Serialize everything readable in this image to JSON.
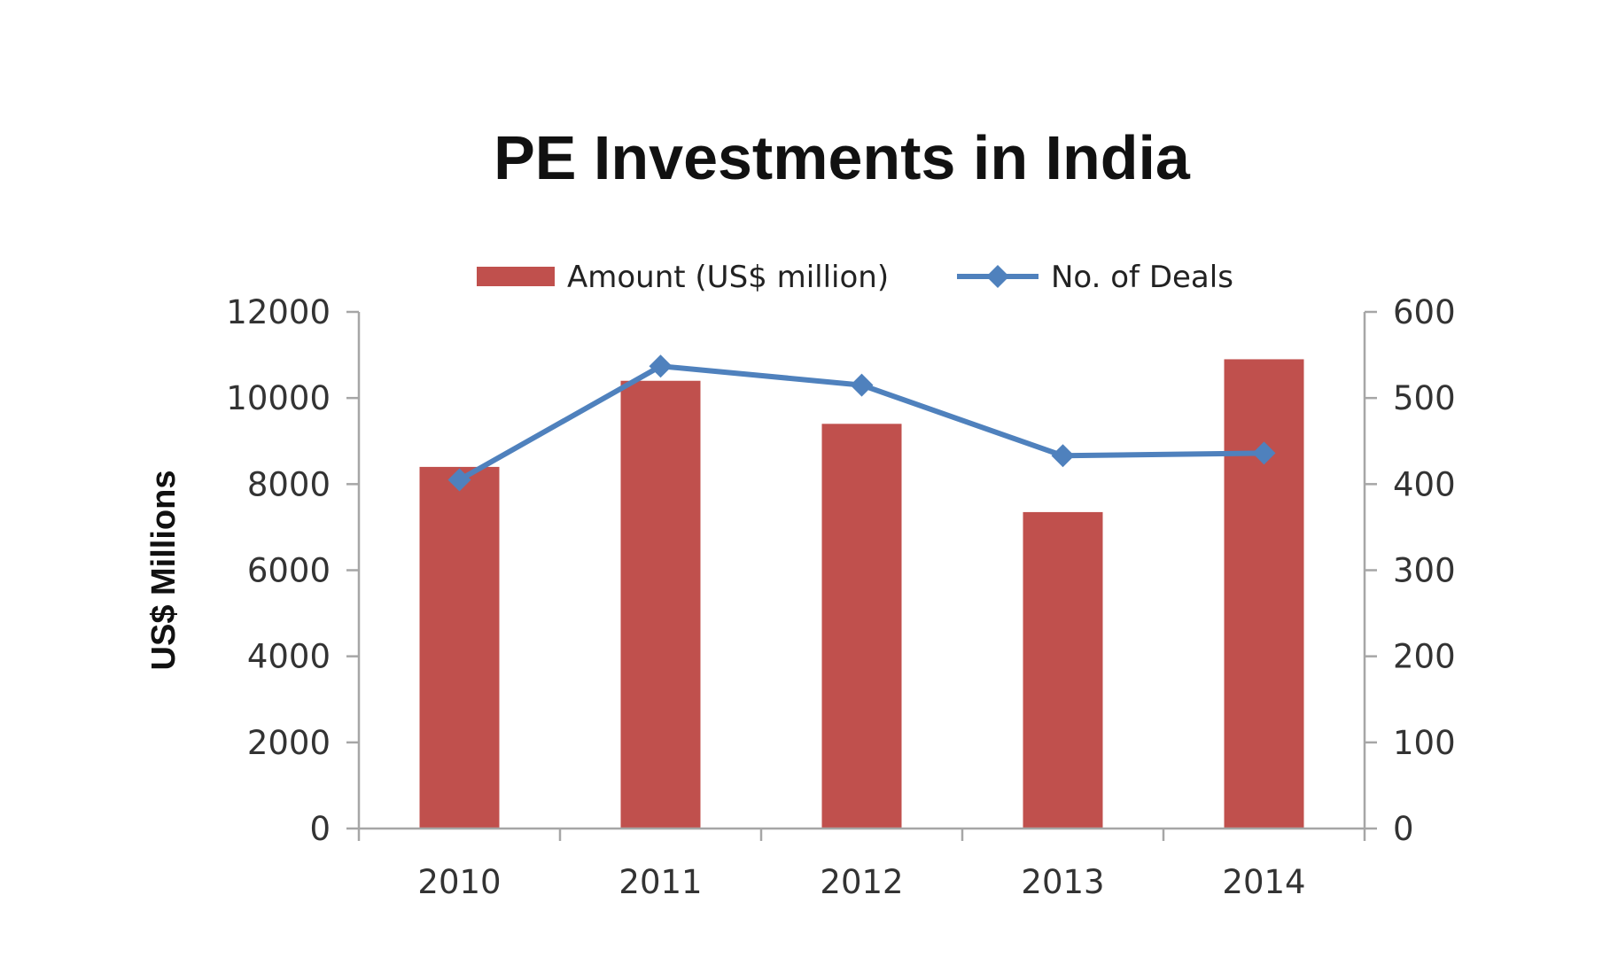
{
  "chart_data": {
    "type": "bar",
    "title": "PE Investments in India",
    "categories": [
      "2010",
      "2011",
      "2012",
      "2013",
      "2014"
    ],
    "series": [
      {
        "name": "Amount (US$ million)",
        "kind": "bar",
        "axis": "left",
        "color": "#c0504d",
        "values": [
          8400,
          10400,
          9400,
          7350,
          10900
        ]
      },
      {
        "name": "No. of Deals",
        "kind": "line",
        "marker": "diamond",
        "axis": "right",
        "color": "#4f81bd",
        "values": [
          405,
          537,
          515,
          433,
          436
        ]
      }
    ],
    "ylabel": "US$ Millions",
    "ylim": [
      0,
      12000
    ],
    "yticks": [
      "0",
      "2000",
      "4000",
      "6000",
      "8000",
      "10000",
      "12000"
    ],
    "y2lim": [
      0,
      600
    ],
    "y2ticks": [
      "0",
      "100",
      "200",
      "300",
      "400",
      "500",
      "600"
    ],
    "legend_position": "top",
    "grid": false,
    "axis_color": "#a6a6a6"
  }
}
